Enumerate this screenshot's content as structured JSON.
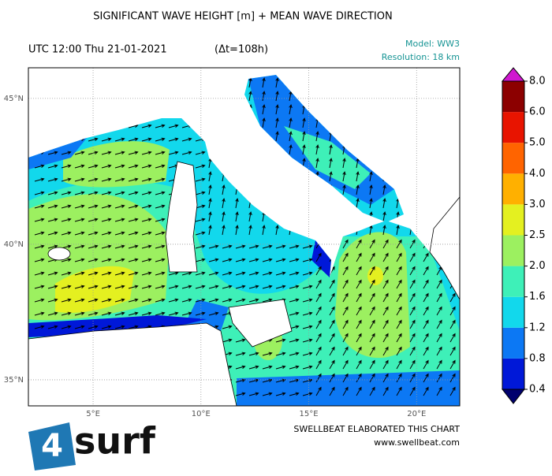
{
  "chart_data": {
    "type": "map",
    "title": "SIGNIFICANT WAVE HEIGHT [m] + MEAN WAVE DIRECTION",
    "time": "UTC 12:00 Thu 21-01-2021",
    "lead": "(Δt=108h)",
    "model": "Model: WW3",
    "resolution": "Resolution: 18 km",
    "xlim": [
      2,
      22
    ],
    "ylim": [
      34,
      46
    ],
    "xticks": [
      {
        "value": 5,
        "label": "5°E"
      },
      {
        "value": 10,
        "label": "10°E"
      },
      {
        "value": 15,
        "label": "15°E"
      },
      {
        "value": 20,
        "label": "20°E"
      }
    ],
    "yticks": [
      {
        "value": 35,
        "label": "35°N"
      },
      {
        "value": 40,
        "label": "40°N"
      },
      {
        "value": 45,
        "label": "45°N"
      }
    ],
    "grid": true,
    "colorbar": {
      "levels": [
        0.4,
        0.8,
        1.2,
        1.6,
        {
          "value": 2,
          "label": "2.0"
        },
        2.5,
        {
          "value": 3,
          "label": "3.0"
        },
        {
          "value": 4,
          "label": "4.0"
        },
        {
          "value": 5,
          "label": "5.0"
        },
        {
          "value": 6,
          "label": "6.0"
        },
        {
          "value": 8,
          "label": "8.0"
        }
      ],
      "colors": [
        "#0018d8",
        "#0c78f4",
        "#12d8ec",
        "#3ef0b8",
        "#9cf060",
        "#e4f020",
        "#ffb000",
        "#ff6400",
        "#e81400",
        "#8c0000"
      ],
      "under_color": "#00006e",
      "over_color": "#d018d0"
    },
    "credit": "SWELLBEAT ELABORATED THIS CHART",
    "website": "www.swellbeat.com",
    "logo_number": "4",
    "logo_text": "surf"
  }
}
